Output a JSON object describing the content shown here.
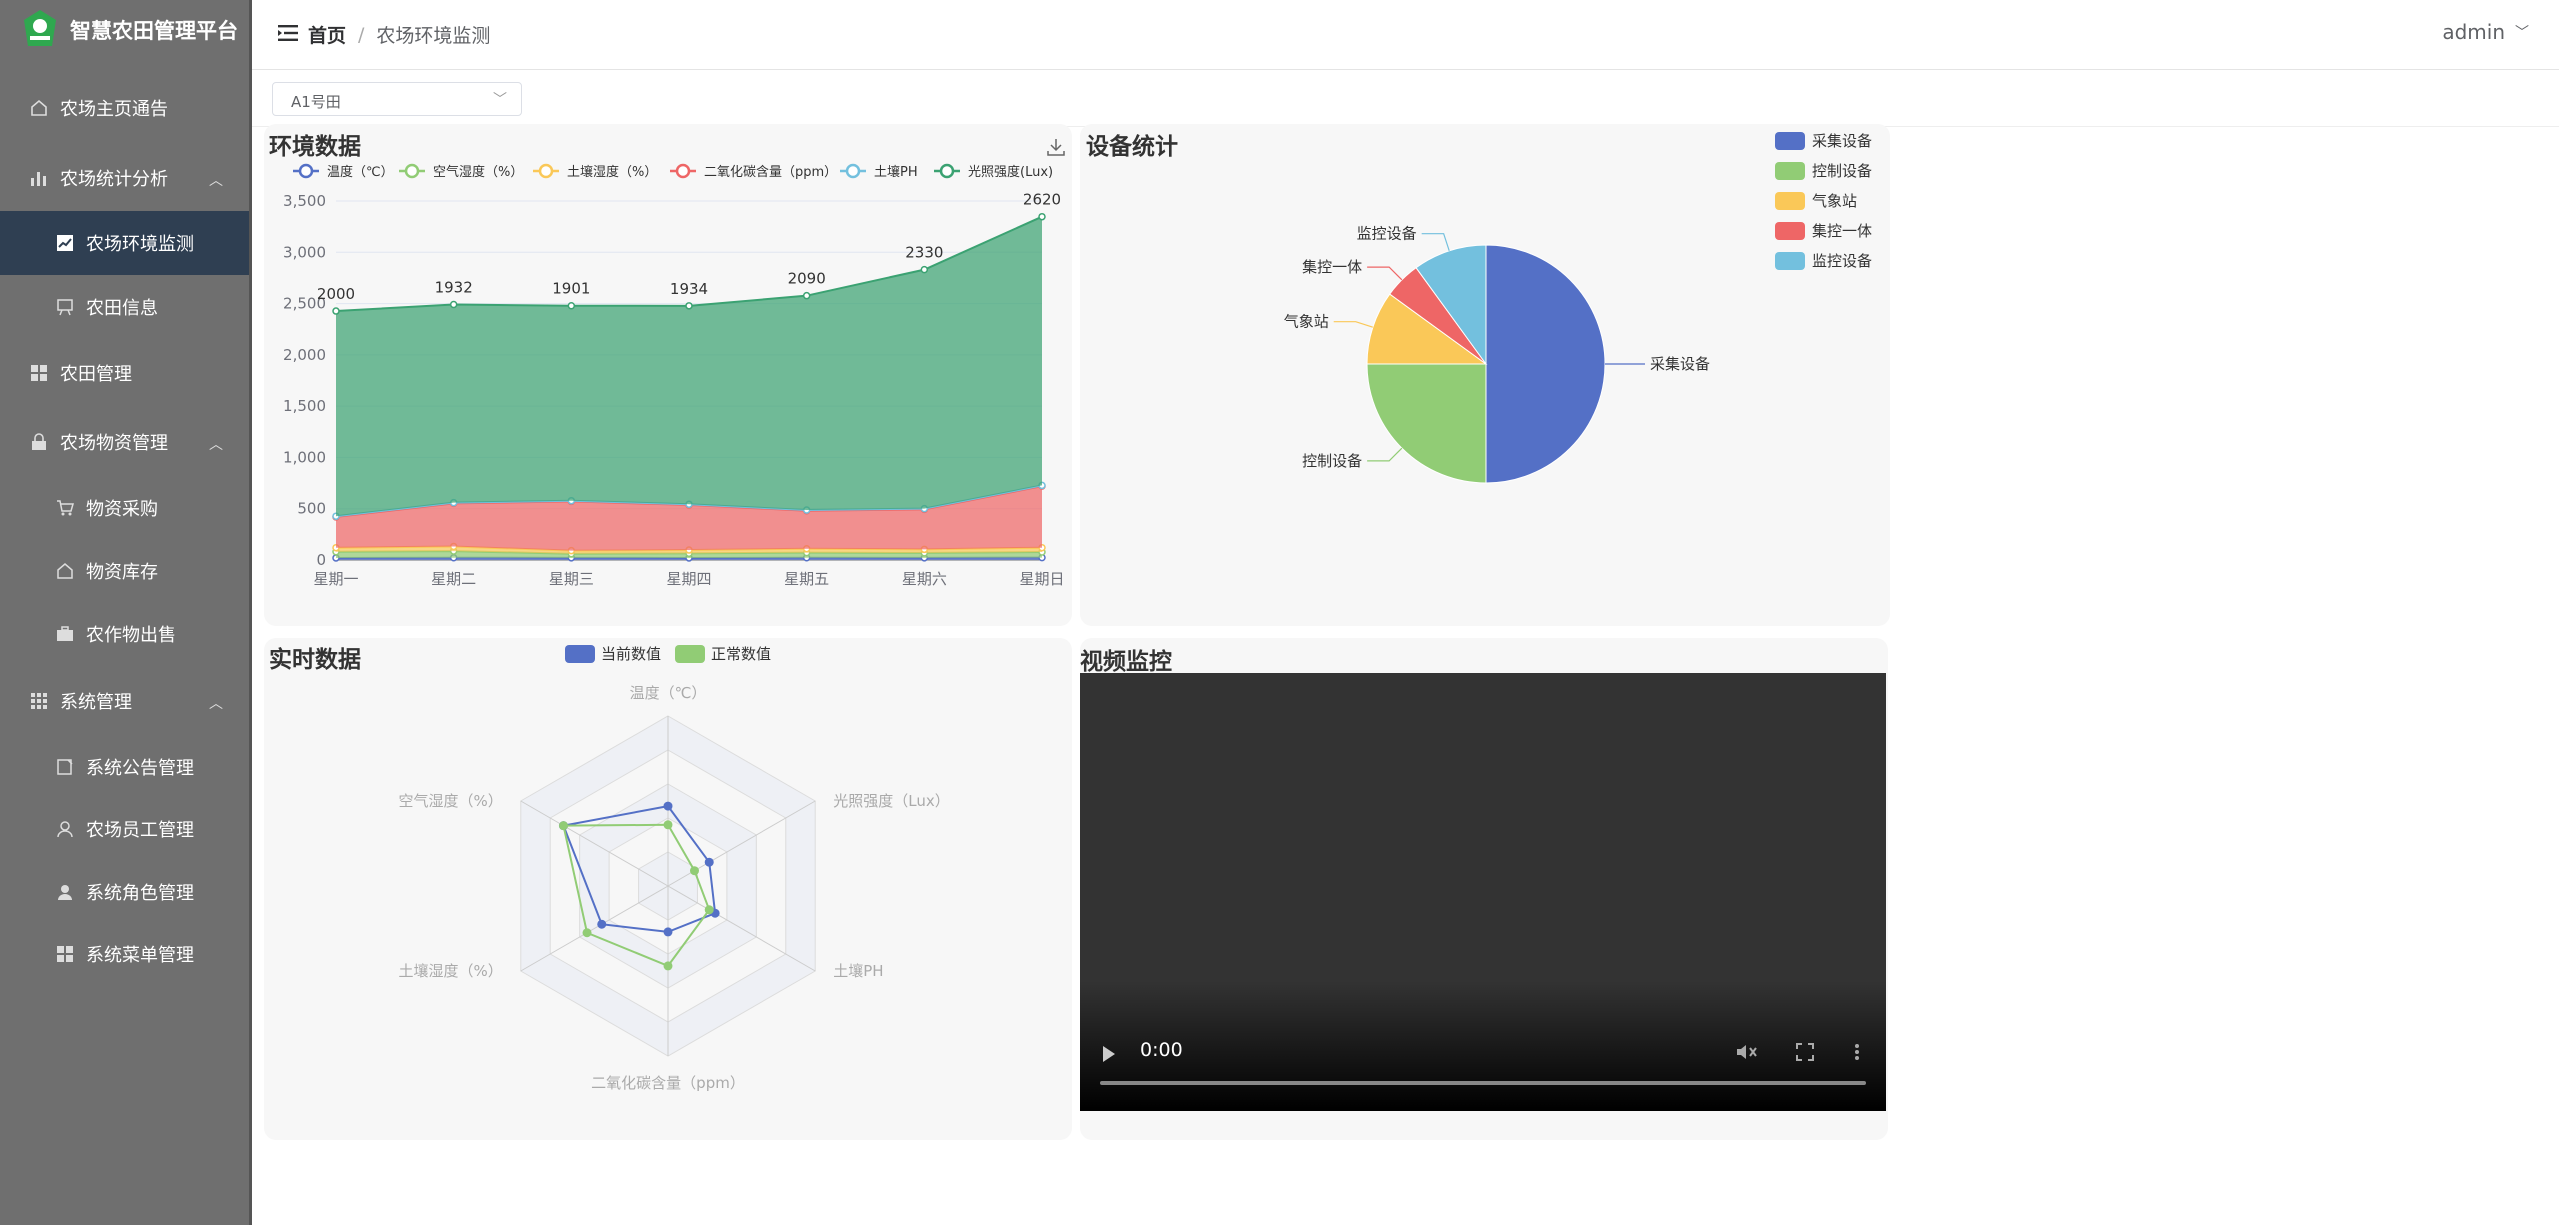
{
  "app": {
    "title": "智慧农田管理平台"
  },
  "sidebar": {
    "items": [
      {
        "label": "农场主页通告",
        "icon": "home-icon"
      },
      {
        "label": "农场统计分析",
        "icon": "bar-chart-icon"
      },
      {
        "label": "农场环境监测",
        "icon": "line-chart-icon",
        "active": true
      },
      {
        "label": "农田信息",
        "icon": "board-icon"
      },
      {
        "label": "农田管理",
        "icon": "grid-icon"
      },
      {
        "label": "农场物资管理",
        "icon": "lock-icon"
      },
      {
        "label": "物资采购",
        "icon": "cart-icon"
      },
      {
        "label": "物资库存",
        "icon": "home-icon"
      },
      {
        "label": "农作物出售",
        "icon": "briefcase-icon"
      },
      {
        "label": "系统管理",
        "icon": "grid-icon"
      },
      {
        "label": "系统公告管理",
        "icon": "notice-icon"
      },
      {
        "label": "农场员工管理",
        "icon": "user-icon"
      },
      {
        "label": "系统角色管理",
        "icon": "user-filled-icon"
      },
      {
        "label": "系统菜单管理",
        "icon": "grid-icon"
      }
    ]
  },
  "header": {
    "breadcrumb_home": "首页",
    "breadcrumb_sep": "/",
    "breadcrumb_current": "农场环境监测",
    "user": "admin"
  },
  "filter": {
    "field_select": "A1号田"
  },
  "cards": {
    "env_title": "环境数据",
    "device_title": "设备统计",
    "realtime_title": "实时数据",
    "video_title": "视频监控"
  },
  "video": {
    "time": "0:00"
  },
  "chart_data": [
    {
      "type": "area",
      "title": "环境数据",
      "categories": [
        "星期一",
        "星期二",
        "星期三",
        "星期四",
        "星期五",
        "星期六",
        "星期日"
      ],
      "stacked": true,
      "ylim": [
        0,
        3500
      ],
      "yticks": [
        "0",
        "500",
        "1,000",
        "1,500",
        "2,000",
        "2,500",
        "3,000",
        "3,500"
      ],
      "grid": true,
      "legend_position": "top",
      "series": [
        {
          "name": "温度（℃）",
          "color": "#5470c6",
          "values": [
            20,
            22,
            21,
            20,
            22,
            21,
            23
          ]
        },
        {
          "name": "空气湿度（%）",
          "color": "#91cc75",
          "values": [
            60,
            65,
            40,
            45,
            50,
            48,
            55
          ]
        },
        {
          "name": "土壤湿度（%）",
          "color": "#fac858",
          "values": [
            40,
            45,
            30,
            32,
            38,
            35,
            42
          ]
        },
        {
          "name": "二氧化碳含量（ppm）",
          "color": "#ee6666",
          "values": [
            300,
            420,
            480,
            440,
            370,
            390,
            600
          ]
        },
        {
          "name": "土壤PH",
          "color": "#73c0de",
          "values": [
            7,
            7,
            7,
            7,
            7,
            7,
            7
          ]
        },
        {
          "name": "光照强度(Lux)",
          "color": "#3ba272",
          "values": [
            2000,
            1932,
            1901,
            1934,
            2090,
            2330,
            2620
          ]
        }
      ],
      "top_labels": [
        "2000",
        "1932",
        "1901",
        "1934",
        "2090",
        "2330",
        "2620"
      ]
    },
    {
      "type": "pie",
      "title": "设备统计",
      "legend_position": "top-right",
      "slices": [
        {
          "name": "采集设备",
          "value": 50,
          "color": "#5470c6"
        },
        {
          "name": "控制设备",
          "value": 25,
          "color": "#91cc75"
        },
        {
          "name": "气象站",
          "value": 10,
          "color": "#fac858"
        },
        {
          "name": "集控一体",
          "value": 5,
          "color": "#ee6666"
        },
        {
          "name": "监控设备",
          "value": 10,
          "color": "#73c0de"
        }
      ]
    },
    {
      "type": "radar",
      "title": "实时数据",
      "legend_position": "top",
      "indicators": [
        "温度（℃）",
        "光照强度（Lux）",
        "土壤PH",
        "二氧化碳含量（ppm）",
        "土壤湿度（%）",
        "空气湿度（%）"
      ],
      "series": [
        {
          "name": "当前数值",
          "color": "#5470c6",
          "values": [
            0.47,
            0.28,
            0.32,
            0.27,
            0.45,
            0.71
          ]
        },
        {
          "name": "正常数值",
          "color": "#91cc75",
          "values": [
            0.36,
            0.18,
            0.28,
            0.47,
            0.55,
            0.71
          ]
        }
      ]
    }
  ]
}
